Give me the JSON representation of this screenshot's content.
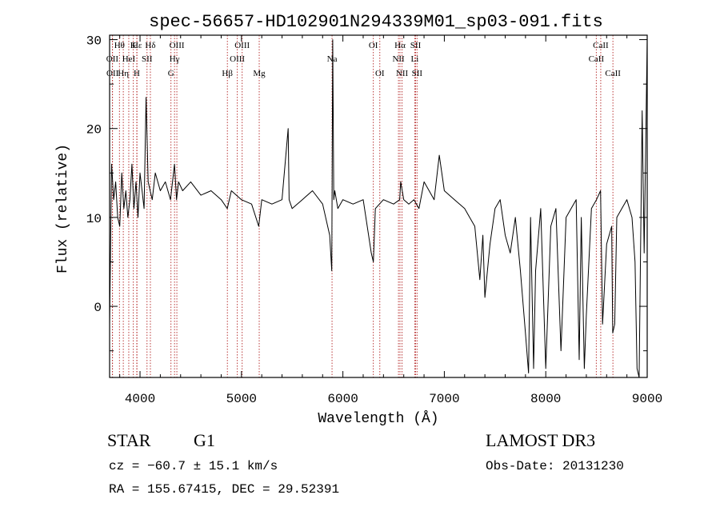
{
  "chart_data": {
    "type": "line",
    "title": "spec-56657-HD102901N294339M01_sp03-091.fits",
    "xlabel": "Wavelength (Å)",
    "ylabel": "Flux (relative)",
    "xlim": [
      3700,
      9000
    ],
    "ylim": [
      -8,
      30.5
    ],
    "xticks": [
      4000,
      5000,
      6000,
      7000,
      8000,
      9000
    ],
    "yticks": [
      0,
      10,
      20,
      30
    ],
    "series": [
      {
        "name": "flux",
        "color": "#000000",
        "x": [
          3700,
          3720,
          3740,
          3760,
          3780,
          3800,
          3820,
          3840,
          3860,
          3880,
          3900,
          3920,
          3940,
          3960,
          3980,
          4000,
          4020,
          4040,
          4060,
          4080,
          4100,
          4120,
          4150,
          4200,
          4250,
          4300,
          4330,
          4340,
          4360,
          4380,
          4420,
          4500,
          4600,
          4700,
          4800,
          4860,
          4900,
          5000,
          5100,
          5170,
          5200,
          5300,
          5400,
          5460,
          5470,
          5500,
          5600,
          5700,
          5800,
          5870,
          5890,
          5900,
          5910,
          5920,
          5950,
          6000,
          6100,
          6200,
          6280,
          6300,
          6320,
          6400,
          6500,
          6560,
          6570,
          6600,
          6650,
          6700,
          6750,
          6800,
          6850,
          6900,
          6950,
          7000,
          7100,
          7200,
          7250,
          7300,
          7350,
          7380,
          7400,
          7450,
          7500,
          7550,
          7600,
          7650,
          7700,
          7750,
          7800,
          7830,
          7850,
          7880,
          7900,
          7950,
          8000,
          8050,
          8100,
          8150,
          8200,
          8250,
          8300,
          8330,
          8350,
          8380,
          8400,
          8450,
          8500,
          8540,
          8560,
          8600,
          8650,
          8660,
          8680,
          8700,
          8750,
          8800,
          8850,
          8880,
          8900,
          8920,
          8950,
          8970,
          9000
        ],
        "values": [
          -2,
          16,
          12,
          14,
          10,
          9,
          15,
          11,
          13,
          10,
          12,
          16,
          11,
          14,
          10,
          15,
          13,
          11,
          23.5,
          14,
          13,
          12,
          15,
          13,
          14,
          12,
          15,
          16,
          12,
          14,
          13,
          14,
          12.5,
          13,
          12,
          11,
          13,
          12,
          11.5,
          9,
          12,
          11.5,
          12,
          20,
          12,
          11,
          12,
          13,
          11.5,
          8,
          4,
          30,
          12,
          13,
          11,
          12,
          11.5,
          12,
          6,
          5,
          11,
          12,
          11.5,
          12,
          14,
          12,
          11.5,
          12,
          11,
          14,
          13,
          12,
          17,
          13,
          12,
          11,
          10,
          9,
          3,
          8,
          1,
          7,
          11,
          12,
          8,
          6,
          10,
          4,
          -3,
          -7.5,
          10,
          -7,
          4,
          11,
          -7,
          9,
          11,
          -5,
          10,
          11,
          12,
          -6,
          10,
          -7,
          -1,
          11,
          12,
          13,
          -2,
          7,
          9,
          -3,
          -2,
          10,
          11,
          12,
          10,
          5,
          -7,
          -8,
          22,
          6,
          30
        ]
      }
    ],
    "lines": [
      {
        "label": "Hθ",
        "x": 3797,
        "row": 0
      },
      {
        "label": "OII",
        "x": 3727,
        "row": 1
      },
      {
        "label": "OII",
        "x": 3729,
        "row": 2
      },
      {
        "label": "Hε",
        "x": 3970,
        "row": 0
      },
      {
        "label": "HeI",
        "x": 3889,
        "row": 1
      },
      {
        "label": "Hη",
        "x": 3835,
        "row": 2
      },
      {
        "label": "K",
        "x": 3934,
        "row": 0
      },
      {
        "label": "SII",
        "x": 4069,
        "row": 1
      },
      {
        "label": "H",
        "x": 3968,
        "row": 2
      },
      {
        "label": "Hδ",
        "x": 4102,
        "row": 0
      },
      {
        "label": "OIII",
        "x": 4363,
        "row": 0
      },
      {
        "label": "Hγ",
        "x": 4340,
        "row": 1
      },
      {
        "label": "G",
        "x": 4305,
        "row": 2
      },
      {
        "label": "OIII",
        "x": 5007,
        "row": 0
      },
      {
        "label": "OIII",
        "x": 4959,
        "row": 1
      },
      {
        "label": "Hβ",
        "x": 4861,
        "row": 2
      },
      {
        "label": "Mg",
        "x": 5175,
        "row": 2
      },
      {
        "label": "Na",
        "x": 5893,
        "row": 1
      },
      {
        "label": "OI",
        "x": 6300,
        "row": 0
      },
      {
        "label": "OI",
        "x": 6364,
        "row": 2
      },
      {
        "label": "Hα",
        "x": 6563,
        "row": 0
      },
      {
        "label": "SII",
        "x": 6717,
        "row": 0
      },
      {
        "label": "NII",
        "x": 6548,
        "row": 1
      },
      {
        "label": "Li",
        "x": 6708,
        "row": 1
      },
      {
        "label": "NII",
        "x": 6583,
        "row": 2
      },
      {
        "label": "SII",
        "x": 6731,
        "row": 2
      },
      {
        "label": "CaII",
        "x": 8542,
        "row": 0
      },
      {
        "label": "CaII",
        "x": 8498,
        "row": 1
      },
      {
        "label": "CaII",
        "x": 8662,
        "row": 2
      }
    ]
  },
  "info": {
    "object_class": "STAR",
    "subclass": "G1",
    "survey": "LAMOST DR3",
    "redshift": "cz = −60.7 ± 15.1 km/s",
    "obs_date": "Obs-Date: 20131230",
    "coords": "RA = 155.67415, DEC =  29.52391"
  },
  "colors": {
    "spectrum": "#000000",
    "line_marker": "#b22222",
    "axis": "#000000",
    "background": "#ffffff"
  }
}
